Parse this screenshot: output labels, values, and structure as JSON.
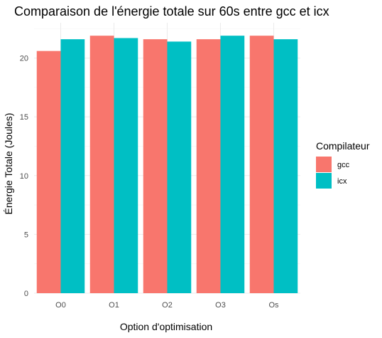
{
  "chart_data": {
    "type": "bar",
    "title": "Comparaison de l'énergie totale sur 60s entre gcc et icx",
    "xlabel": "Option d'optimisation",
    "ylabel": "Énergie Totale (Joules)",
    "categories": [
      "O0",
      "O1",
      "O2",
      "O3",
      "Os"
    ],
    "series": [
      {
        "name": "gcc",
        "color": "#F8766D",
        "values": [
          20.6,
          21.9,
          21.6,
          21.6,
          21.9
        ]
      },
      {
        "name": "icx",
        "color": "#00BFC4",
        "values": [
          21.6,
          21.7,
          21.4,
          21.9,
          21.6
        ]
      }
    ],
    "ylim": [
      0,
      23
    ],
    "yticks": [
      0,
      5,
      10,
      15,
      20
    ],
    "grid": true,
    "legend": {
      "title": "Compilateur",
      "position": "right"
    }
  }
}
